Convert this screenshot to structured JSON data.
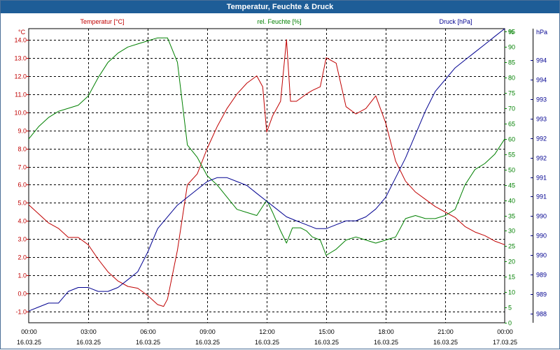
{
  "window": {
    "title": "Temperatur, Feuchte & Druck"
  },
  "chart_data": {
    "type": "line",
    "grid": true,
    "x": {
      "ticks": [
        {
          "time": "00:00",
          "date": "16.03.25"
        },
        {
          "time": "03:00",
          "date": "16.03.25"
        },
        {
          "time": "06:00",
          "date": "16.03.25"
        },
        {
          "time": "09:00",
          "date": "16.03.25"
        },
        {
          "time": "12:00",
          "date": "16.03.25"
        },
        {
          "time": "15:00",
          "date": "16.03.25"
        },
        {
          "time": "18:00",
          "date": "16.03.25"
        },
        {
          "time": "21:00",
          "date": "16.03.25"
        },
        {
          "time": "00:00",
          "date": "17.03.25"
        }
      ],
      "range_hours": [
        0,
        24
      ]
    },
    "axes": {
      "temperature": {
        "unit": "°C",
        "range": [
          -1.6,
          14.6
        ],
        "color": "#c00000",
        "ticks": [
          "-1.0",
          "0.0",
          "1.0",
          "2.0",
          "3.0",
          "4.0",
          "5.0",
          "6.0",
          "7.0",
          "8.0",
          "9.0",
          "10.0",
          "11.0",
          "12.0",
          "13.0",
          "14.0"
        ]
      },
      "humidity": {
        "unit": "%",
        "range": [
          0,
          96
        ],
        "color": "#008000",
        "ticks": [
          "0",
          "5",
          "10",
          "15",
          "20",
          "25",
          "30",
          "35",
          "40",
          "45",
          "50",
          "55",
          "60",
          "65",
          "70",
          "75",
          "80",
          "85",
          "90",
          "95"
        ]
      },
      "pressure": {
        "unit": "hPa",
        "range": [
          987.5,
          995.0
        ],
        "color": "#000090",
        "ticks": [
          "988",
          "989",
          "989",
          "990",
          "990",
          "990",
          "991",
          "991",
          "992",
          "992",
          "993",
          "993",
          "994",
          "994"
        ]
      }
    },
    "series": [
      {
        "name": "Temperatur [°C]",
        "axis": "temperature",
        "color": "#c00000",
        "x": [
          0,
          0.5,
          1,
          1.5,
          2,
          2.5,
          3,
          3.5,
          4,
          4.5,
          5,
          5.5,
          6,
          6.5,
          6.8,
          7,
          7.5,
          8,
          8.5,
          9,
          9.5,
          10,
          10.5,
          11,
          11.5,
          11.8,
          12,
          12.3,
          12.7,
          13,
          13.2,
          13.5,
          14,
          14.3,
          14.7,
          15,
          15.5,
          16,
          16.5,
          17,
          17.5,
          18,
          18.5,
          19,
          19.5,
          20,
          20.5,
          21,
          21.5,
          22,
          22.5,
          23,
          23.5,
          24
        ],
        "values": [
          4.9,
          4.4,
          3.9,
          3.6,
          3.1,
          3.1,
          2.7,
          1.9,
          1.2,
          0.7,
          0.4,
          0.3,
          -0.1,
          -0.6,
          -0.7,
          -0.3,
          2.4,
          6.0,
          6.6,
          8.0,
          9.2,
          10.2,
          11.0,
          11.6,
          12.0,
          11.4,
          8.9,
          9.8,
          10.6,
          14.0,
          10.6,
          10.6,
          11.0,
          11.2,
          11.4,
          13.0,
          12.7,
          10.3,
          9.9,
          10.2,
          10.9,
          9.4,
          7.3,
          6.2,
          5.6,
          5.2,
          4.8,
          4.5,
          4.2,
          3.7,
          3.4,
          3.2,
          2.9,
          2.7
        ]
      },
      {
        "name": "rel. Feuchte [%]",
        "axis": "humidity",
        "color": "#008000",
        "x": [
          0,
          0.5,
          1,
          1.5,
          2,
          2.5,
          3,
          3.5,
          4,
          4.5,
          5,
          5.5,
          6,
          6.5,
          7,
          7.5,
          8,
          8.5,
          9,
          9.5,
          10,
          10.5,
          11,
          11.5,
          12,
          12.3,
          12.7,
          13,
          13.3,
          13.7,
          14,
          14.3,
          14.7,
          15,
          15.5,
          16,
          16.5,
          17,
          17.5,
          18,
          18.5,
          19,
          19.5,
          20,
          20.5,
          21,
          21.5,
          22,
          22.5,
          23,
          23.5,
          24
        ],
        "values": [
          60,
          64,
          67,
          69,
          70,
          71,
          74,
          80,
          85,
          88,
          90,
          91,
          92,
          93,
          93,
          85,
          58,
          54,
          48,
          45,
          41,
          37,
          36,
          35,
          40,
          36,
          30,
          26,
          31,
          31,
          30,
          28,
          27,
          22,
          24,
          27,
          28,
          27,
          26,
          27,
          28,
          34,
          35,
          34,
          34,
          35,
          37,
          45,
          50,
          52,
          55,
          60
        ]
      },
      {
        "name": "Druck [hPa]",
        "axis": "pressure",
        "color": "#000090",
        "x": [
          0,
          0.5,
          1,
          1.5,
          2,
          2.5,
          3,
          3.5,
          4,
          4.5,
          5,
          5.5,
          6,
          6.5,
          7,
          7.5,
          8,
          8.5,
          9,
          9.5,
          10,
          10.5,
          11,
          11.5,
          12,
          12.5,
          13,
          13.5,
          14,
          14.5,
          15,
          15.5,
          16,
          16.5,
          17,
          17.5,
          18,
          18.5,
          19,
          19.5,
          20,
          20.5,
          21,
          21.5,
          22,
          22.5,
          23,
          23.5,
          24
        ],
        "values": [
          987.8,
          987.9,
          988.0,
          988.0,
          988.3,
          988.4,
          988.4,
          988.3,
          988.3,
          988.4,
          988.6,
          988.8,
          989.3,
          989.9,
          990.2,
          990.5,
          990.7,
          990.9,
          991.1,
          991.2,
          991.2,
          991.1,
          991.0,
          990.8,
          990.6,
          990.4,
          990.2,
          990.1,
          990.0,
          989.9,
          989.9,
          990.0,
          990.1,
          990.1,
          990.2,
          990.4,
          990.7,
          991.2,
          991.7,
          992.3,
          992.9,
          993.4,
          993.7,
          994.0,
          994.2,
          994.4,
          994.6,
          994.8,
          995.0
        ]
      }
    ]
  }
}
